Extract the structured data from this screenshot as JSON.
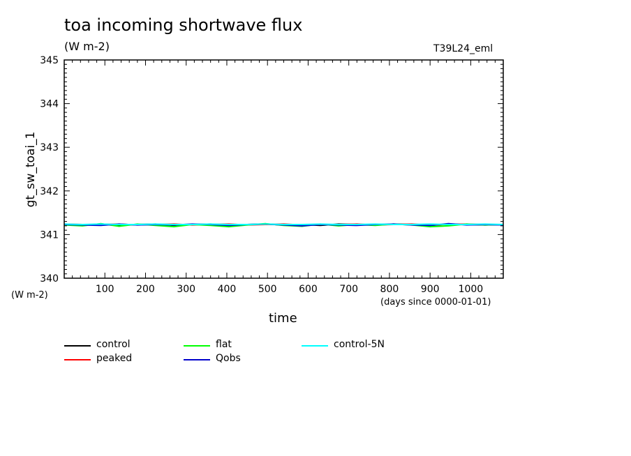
{
  "header": {
    "title": "toa incoming shortwave flux",
    "units": "(W m-2)",
    "run_label": "T39L24_eml"
  },
  "chart_data": {
    "type": "line",
    "title": "toa incoming shortwave flux",
    "ylabel": "gt_sw_toai_1",
    "yunits": "(W m-2)",
    "xlabel": "time",
    "xunits": "(days since 0000-01-01)",
    "xlim": [
      0,
      1080
    ],
    "ylim": [
      340,
      345
    ],
    "xticks": [
      100,
      200,
      300,
      400,
      500,
      600,
      700,
      800,
      900,
      1000
    ],
    "yticks": [
      340,
      341,
      342,
      343,
      344,
      345
    ],
    "grid": false,
    "legend_position": "bottom",
    "series": [
      {
        "name": "control",
        "color": "#000000",
        "x": [
          0,
          45,
          90,
          135,
          180,
          225,
          270,
          315,
          360,
          405,
          450,
          495,
          540,
          585,
          630,
          675,
          720,
          765,
          810,
          855,
          900,
          945,
          990,
          1035,
          1080
        ],
        "y": [
          341.23,
          341.22,
          341.24,
          341.22,
          341.23,
          341.24,
          341.21,
          341.23,
          341.24,
          341.22,
          341.23,
          341.24,
          341.22,
          341.23,
          341.21,
          341.24,
          341.23,
          341.22,
          341.24,
          341.23,
          341.21,
          341.24,
          341.23,
          341.22,
          341.23
        ]
      },
      {
        "name": "peaked",
        "color": "#ff0000",
        "x": [
          0,
          45,
          90,
          135,
          180,
          225,
          270,
          315,
          360,
          405,
          450,
          495,
          540,
          585,
          630,
          675,
          720,
          765,
          810,
          855,
          900,
          945,
          990,
          1035,
          1080
        ],
        "y": [
          341.24,
          341.23,
          341.23,
          341.24,
          341.22,
          341.23,
          341.24,
          341.22,
          341.23,
          341.24,
          341.22,
          341.23,
          341.24,
          341.22,
          341.23,
          341.23,
          341.24,
          341.22,
          341.23,
          341.24,
          341.22,
          341.23,
          341.24,
          341.23,
          341.23
        ]
      },
      {
        "name": "flat",
        "color": "#00ff00",
        "x": [
          0,
          45,
          90,
          135,
          180,
          225,
          270,
          315,
          360,
          405,
          450,
          495,
          540,
          585,
          630,
          675,
          720,
          765,
          810,
          855,
          900,
          945,
          990,
          1035,
          1080
        ],
        "y": [
          341.22,
          341.2,
          341.25,
          341.19,
          341.24,
          341.21,
          341.18,
          341.23,
          341.21,
          341.18,
          341.22,
          341.25,
          341.21,
          341.19,
          341.24,
          341.2,
          341.23,
          341.21,
          341.24,
          341.22,
          341.18,
          341.2,
          341.24,
          341.22,
          341.23
        ]
      },
      {
        "name": "Qobs",
        "color": "#0000cc",
        "x": [
          0,
          45,
          90,
          135,
          180,
          225,
          270,
          315,
          360,
          405,
          450,
          495,
          540,
          585,
          630,
          675,
          720,
          765,
          810,
          855,
          900,
          945,
          990,
          1035,
          1080
        ],
        "y": [
          341.23,
          341.22,
          341.21,
          341.24,
          341.22,
          341.23,
          341.22,
          341.24,
          341.23,
          341.21,
          341.23,
          341.24,
          341.22,
          341.2,
          341.23,
          341.22,
          341.21,
          341.23,
          341.24,
          341.22,
          341.21,
          341.25,
          341.22,
          341.23,
          341.22
        ]
      },
      {
        "name": "control-5N",
        "color": "#00ffff",
        "x": [
          0,
          45,
          90,
          135,
          180,
          225,
          270,
          315,
          360,
          405,
          450,
          495,
          540,
          585,
          630,
          675,
          720,
          765,
          810,
          855,
          900,
          945,
          990,
          1035,
          1080
        ],
        "y": [
          341.24,
          341.23,
          341.24,
          341.23,
          341.23,
          341.24,
          341.23,
          341.23,
          341.24,
          341.23,
          341.23,
          341.24,
          341.23,
          341.23,
          341.24,
          341.23,
          341.23,
          341.24,
          341.23,
          341.23,
          341.24,
          341.23,
          341.23,
          341.24,
          341.23
        ]
      }
    ]
  }
}
